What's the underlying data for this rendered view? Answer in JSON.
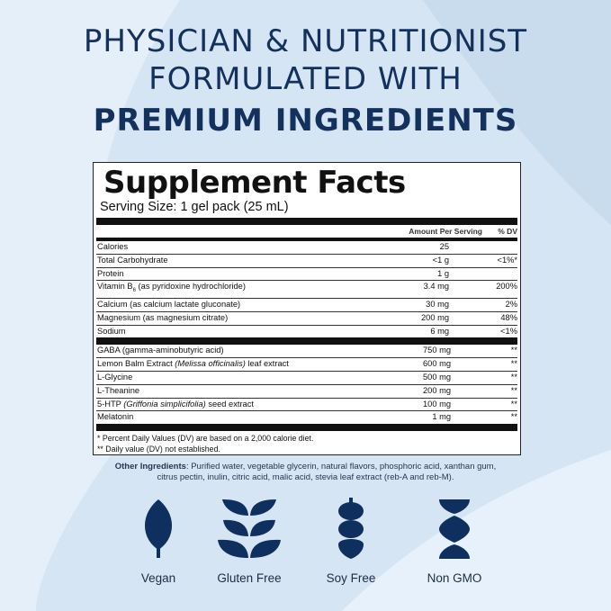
{
  "headline": {
    "line1": "PHYSICIAN & NUTRITIONIST",
    "line2": "FORMULATED WITH",
    "line3": "PREMIUM INGREDIENTS"
  },
  "facts": {
    "title": "Supplement Facts",
    "serving": "Serving Size: 1 gel pack (25 mL)",
    "col_amount": "Amount Per Serving",
    "col_dv": "% DV",
    "group1": [
      {
        "name": "Calories",
        "amount": "25",
        "dv": ""
      },
      {
        "name": "Total Carbohydrate",
        "amount": "<1 g",
        "dv": "<1%*"
      },
      {
        "name": "Protein",
        "amount": "1 g",
        "dv": ""
      },
      {
        "name": "Vitamin B",
        "sub": "6",
        "name2": " (as pyridoxine hydrochloride)",
        "amount": "3.4 mg",
        "dv": "200%"
      },
      {
        "name": "Calcium (as calcium lactate gluconate)",
        "amount": "30 mg",
        "dv": "2%"
      },
      {
        "name": "Magnesium (as magnesium citrate)",
        "amount": "200 mg",
        "dv": "48%"
      },
      {
        "name": "Sodium",
        "amount": "6 mg",
        "dv": "<1%"
      }
    ],
    "group2": [
      {
        "name": "GABA (gamma-aminobutyric acid)",
        "italic": "",
        "tail": "",
        "amount": "750 mg",
        "dv": "**"
      },
      {
        "name": "Lemon Balm Extract ",
        "italic": "(Melissa officinalis)",
        "tail": " leaf extract",
        "amount": "600 mg",
        "dv": "**"
      },
      {
        "name": "L-Glycine",
        "italic": "",
        "tail": "",
        "amount": "500 mg",
        "dv": "**"
      },
      {
        "name": "L-Theanine",
        "italic": "",
        "tail": "",
        "amount": "200 mg",
        "dv": "**"
      },
      {
        "name": "5-HTP ",
        "italic": "(Griffonia simplicifolia)",
        "tail": " seed extract",
        "amount": "100 mg",
        "dv": "**"
      },
      {
        "name": "Melatonin",
        "italic": "",
        "tail": "",
        "amount": "1 mg",
        "dv": "**"
      }
    ],
    "footnote1": "* Percent Daily Values (DV) are based on a 2,000 calorie diet.",
    "footnote2": "** Daily value (DV) not established."
  },
  "other": {
    "label": "Other Ingredients",
    "text": ": Purified water, vegetable glycerin, natural flavors, phosphoric acid, xanthan gum,",
    "text2": "citrus pectin, inulin, citric acid, malic acid, stevia leaf extract (reb-A and reb-M)."
  },
  "badges": [
    {
      "label": "Vegan",
      "icon": "leaf-icon"
    },
    {
      "label": "Gluten Free",
      "icon": "wheat-icon"
    },
    {
      "label": "Soy Free",
      "icon": "soybean-icon"
    },
    {
      "label": "Non GMO",
      "icon": "dna-icon"
    }
  ],
  "colors": {
    "navy": "#0f2f5f",
    "background": "#d5e5f3"
  }
}
